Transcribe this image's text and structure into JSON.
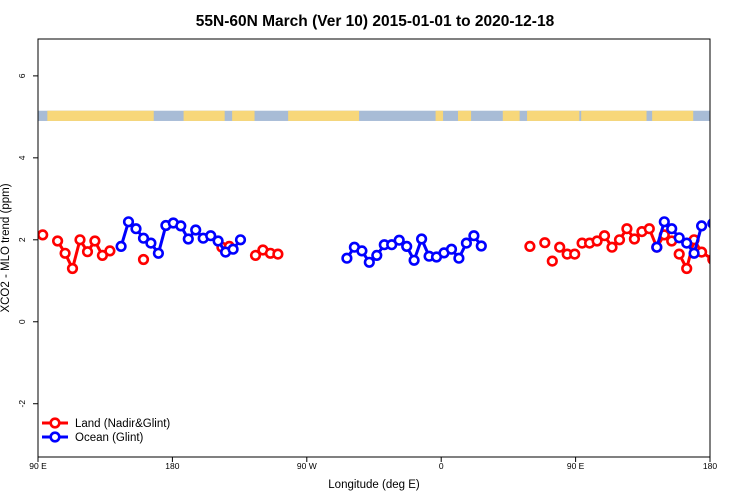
{
  "chart_data": {
    "type": "line",
    "title": "55N-60N March (Ver 10)   2015-01-01 to 2020-12-18",
    "xlabel": "Longitude (deg E)",
    "ylabel": "XCO2 - MLO trend (ppm)",
    "xlim": [
      90,
      450
    ],
    "ylim": [
      -3.3,
      6.9
    ],
    "x_tick_values": [
      90,
      162,
      234,
      306,
      378,
      450
    ],
    "x_tick_labels": [
      "90 E",
      "180",
      "90 W",
      "0",
      "90 E",
      "180"
    ],
    "y_ticks": [
      -2,
      0,
      2,
      4,
      6
    ],
    "map_strip": {
      "y_range": [
        4.9,
        5.15
      ],
      "ocean_color": "#a8bcd6",
      "land_color": "#f7d77a"
    },
    "legend": {
      "position": "bottom-left"
    },
    "series": [
      {
        "name": "Land (Nadir&Glint)",
        "color": "#ff0000",
        "x": [
          92.5,
          100.5,
          104.5,
          108.5,
          112.5,
          116.5,
          120.5,
          124.5,
          128.5,
          146.5,
          188.5,
          192.5,
          206.5,
          210.5,
          214.5,
          218.5,
          353.5,
          361.5,
          365.5,
          369.5,
          373.5,
          377.5,
          381.5,
          385.5,
          389.5,
          393.5,
          397.5,
          401.5,
          405.5,
          409.5,
          413.5,
          417.5,
          421.5,
          425.5,
          429.5,
          433.5,
          437.5,
          441.5,
          445.5,
          451.5
        ],
        "y": [
          2.12,
          1.97,
          1.67,
          1.3,
          2.0,
          1.71,
          1.97,
          1.62,
          1.73,
          1.52,
          1.82,
          1.84,
          1.62,
          1.75,
          1.67,
          1.65,
          1.84,
          1.93,
          1.48,
          1.82,
          1.65,
          1.65,
          1.92,
          1.92,
          1.97,
          2.1,
          1.82,
          2.0,
          2.27,
          2.02,
          2.2,
          2.27,
          1.82,
          2.12,
          1.97,
          1.65,
          1.3,
          2.0,
          1.7,
          1.52
        ],
        "line_segments": [
          [
            1,
            2,
            3,
            4,
            5,
            6,
            7
          ],
          [
            24,
            25,
            26,
            27,
            28,
            29,
            30,
            31,
            32,
            33
          ],
          [
            35,
            36,
            37,
            38,
            39
          ],
          [
            12,
            13,
            14,
            15
          ]
        ]
      },
      {
        "name": "Ocean (Glint)",
        "color": "#0000ff",
        "x": [
          134.5,
          138.5,
          142.5,
          146.5,
          150.5,
          154.5,
          158.5,
          162.5,
          166.5,
          170.5,
          174.5,
          178.5,
          182.5,
          186.5,
          190.5,
          194.5,
          198.5,
          255.5,
          259.5,
          263.5,
          267.5,
          271.5,
          275.5,
          279.5,
          283.5,
          287.5,
          291.5,
          295.5,
          299.5,
          303.5,
          307.5,
          311.5,
          315.5,
          319.5,
          323.5,
          327.5,
          421.5,
          425.5,
          429.5,
          433.5,
          437.5,
          441.5,
          445.5,
          451.5
        ],
        "y": [
          1.84,
          2.44,
          2.27,
          2.04,
          1.92,
          1.67,
          2.35,
          2.41,
          2.34,
          2.02,
          2.24,
          2.04,
          2.1,
          1.97,
          1.7,
          1.77,
          2.0,
          1.55,
          1.82,
          1.73,
          1.45,
          1.62,
          1.88,
          1.88,
          1.99,
          1.84,
          1.5,
          2.02,
          1.6,
          1.58,
          1.68,
          1.77,
          1.55,
          1.92,
          2.1,
          1.85,
          1.82,
          2.44,
          2.27,
          2.05,
          1.92,
          1.67,
          2.34,
          2.4
        ]
      }
    ]
  }
}
